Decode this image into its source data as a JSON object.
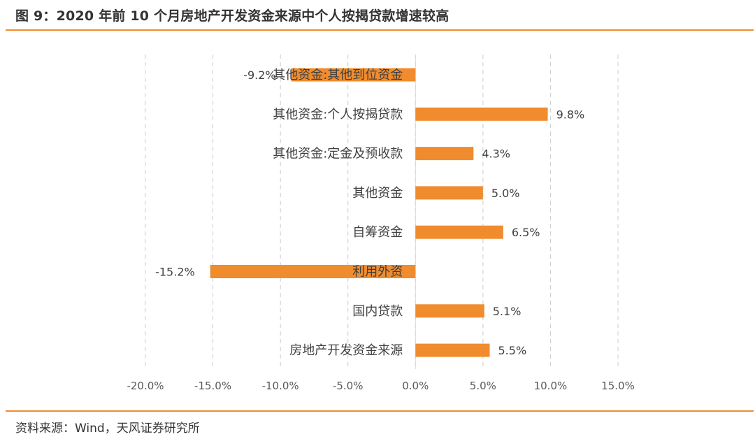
{
  "header": {
    "title": "图 9：2020 年前 10 个月房地产开发资金来源中个人按揭贷款增速较高"
  },
  "footer": {
    "source": "资料来源：Wind，天风证券研究所"
  },
  "colors": {
    "bar": "#f08c2e",
    "rule": "#f08c2e",
    "grid": "#cccccc",
    "text": "#404040"
  },
  "chart_data": {
    "type": "bar",
    "orientation": "horizontal",
    "title": "",
    "xlabel": "",
    "ylabel": "",
    "categories": [
      "其他资金:其他到位资金",
      "其他资金:个人按揭贷款",
      "其他资金:定金及预收款",
      "其他资金",
      "自筹资金",
      "利用外资",
      "国内贷款",
      "房地产开发资金来源"
    ],
    "values": [
      -9.2,
      9.8,
      4.3,
      5.0,
      6.5,
      -15.2,
      5.1,
      5.5
    ],
    "data_labels": [
      "-9.2%",
      "9.8%",
      "4.3%",
      "5.0%",
      "6.5%",
      "-15.2%",
      "5.1%",
      "5.5%"
    ],
    "xlim": [
      -20,
      15
    ],
    "xticks": [
      -20,
      -15,
      -10,
      -5,
      0,
      5,
      10,
      15
    ],
    "xtick_labels": [
      "-20.0%",
      "-15.0%",
      "-10.0%",
      "-5.0%",
      "0.0%",
      "5.0%",
      "10.0%",
      "15.0%"
    ],
    "grid": "vertical dashed",
    "legend": "none"
  }
}
